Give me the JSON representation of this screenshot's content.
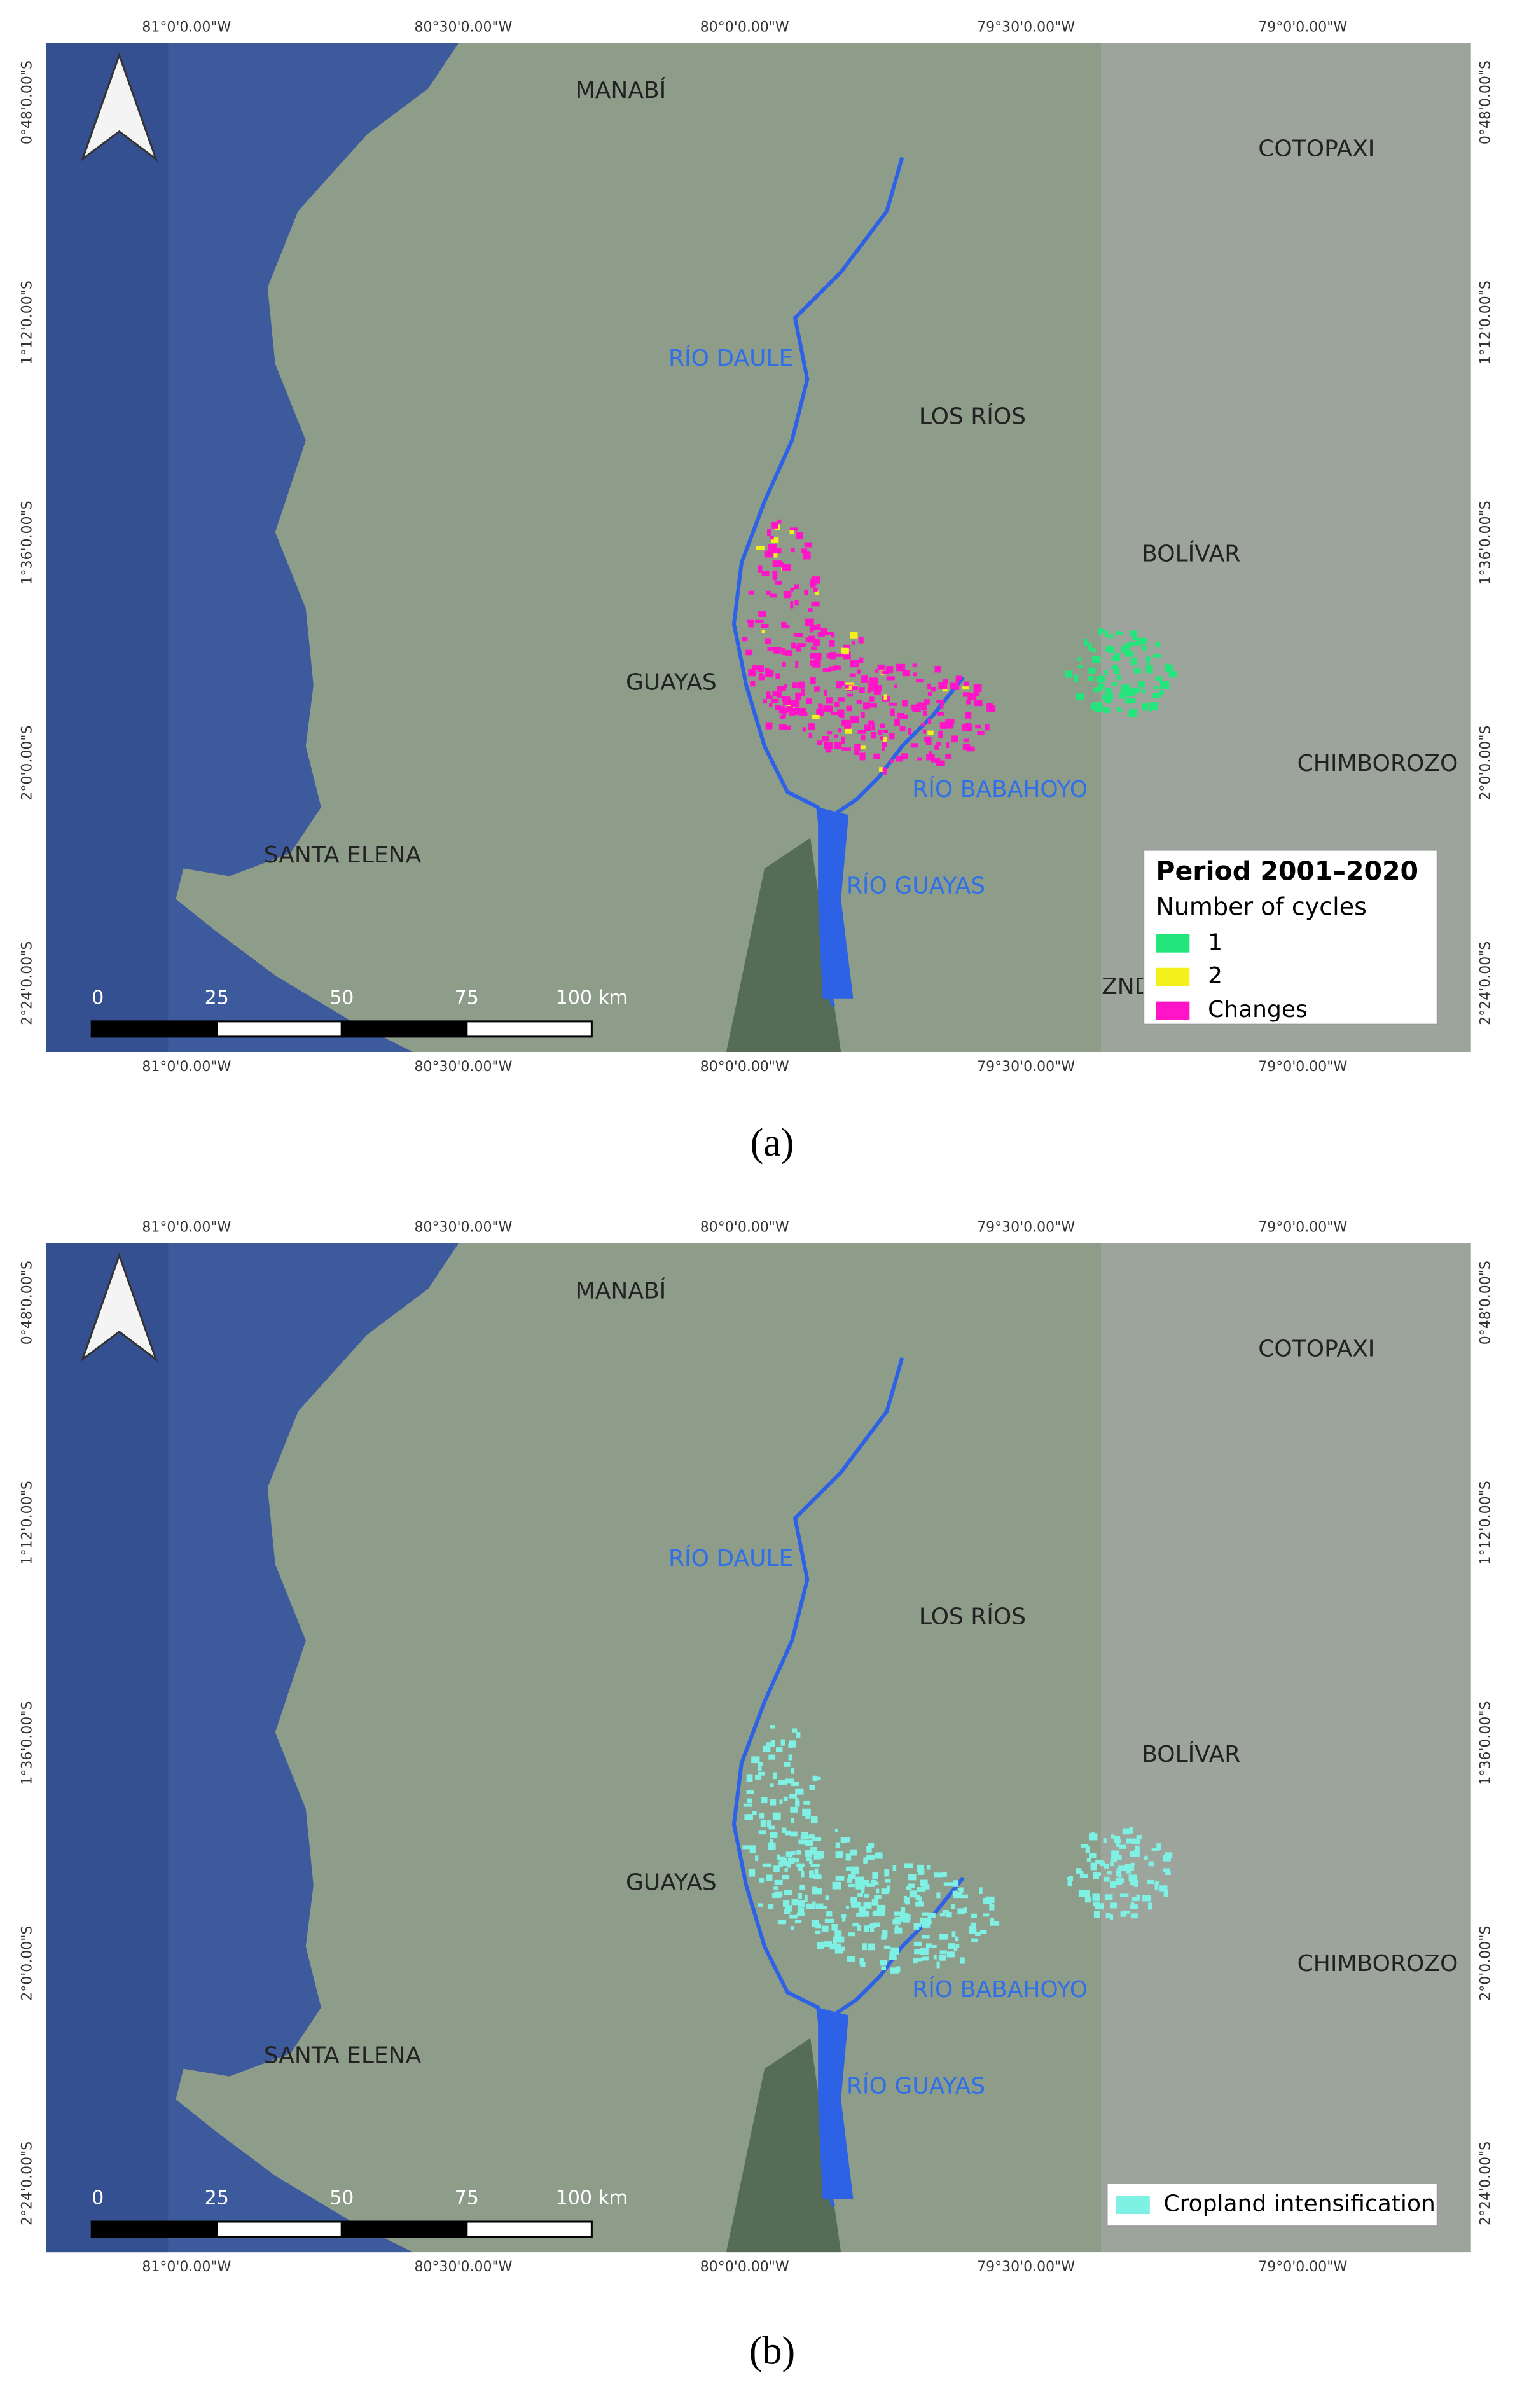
{
  "figure": {
    "panels": [
      {
        "caption": "(a)",
        "top_ticks": [
          "81°0'0.00\"W",
          "80°30'0.00\"W",
          "80°0'0.00\"W",
          "79°30'0.00\"W",
          "79°0'0.00\"W"
        ],
        "bottom_ticks": [
          "81°0'0.00\"W",
          "80°30'0.00\"W",
          "80°0'0.00\"W",
          "79°30'0.00\"W",
          "79°0'0.00\"W"
        ],
        "left_ticks": [
          "0°48'0.00\"S",
          "1°12'0.00\"S",
          "1°36'0.00\"S",
          "2°0'0.00\"S",
          "2°24'0.00\"S"
        ],
        "right_ticks": [
          "0°48'0.00\"S",
          "1°12'0.00\"S",
          "1°36'0.00\"S",
          "2°0'0.00\"S",
          "2°24'0.00\"S"
        ],
        "places": [
          "MANABÍ",
          "COTOPAXI",
          "LOS RÍOS",
          "BOLÍVAR",
          "GUAYAS",
          "CHIMBOROZO",
          "SANTA ELENA",
          "RÍO DAULE",
          "RÍO BABAHOYO",
          "RÍO GUAYAS",
          "ZND"
        ],
        "scale_bar": [
          0,
          25,
          50,
          75,
          {
            "value": 100,
            "label": "100 km"
          }
        ],
        "legend": {
          "title": "Period 2001–2020",
          "subtitle": "Number of cycles",
          "items": [
            {
              "label": "1",
              "color": "#22e57c"
            },
            {
              "label": "2",
              "color": "#f4f01c"
            },
            {
              "label": "Changes",
              "color": "#ff14c8"
            }
          ]
        }
      },
      {
        "caption": "(b)",
        "top_ticks": [
          "81°0'0.00\"W",
          "80°30'0.00\"W",
          "80°0'0.00\"W",
          "79°30'0.00\"W",
          "79°0'0.00\"W"
        ],
        "bottom_ticks": [
          "81°0'0.00\"W",
          "80°30'0.00\"W",
          "80°0'0.00\"W",
          "79°30'0.00\"W",
          "79°0'0.00\"W"
        ],
        "left_ticks": [
          "0°48'0.00\"S",
          "1°12'0.00\"S",
          "1°36'0.00\"S",
          "2°0'0.00\"S",
          "2°24'0.00\"S"
        ],
        "right_ticks": [
          "0°48'0.00\"S",
          "1°12'0.00\"S",
          "1°36'0.00\"S",
          "2°0'0.00\"S",
          "2°24'0.00\"S"
        ],
        "places": [
          "MANABÍ",
          "COTOPAXI",
          "LOS RÍOS",
          "BOLÍVAR",
          "GUAYAS",
          "CHIMBOROZO",
          "SANTA ELENA",
          "RÍO DAULE",
          "RÍO BABAHOYO",
          "RÍO GUAYAS"
        ],
        "scale_bar": [
          0,
          25,
          50,
          75,
          {
            "value": 100,
            "label": "100 km"
          }
        ],
        "legend": {
          "items": [
            {
              "label": "Cropland intensification",
              "color": "#7ff0e4"
            }
          ]
        }
      }
    ]
  }
}
